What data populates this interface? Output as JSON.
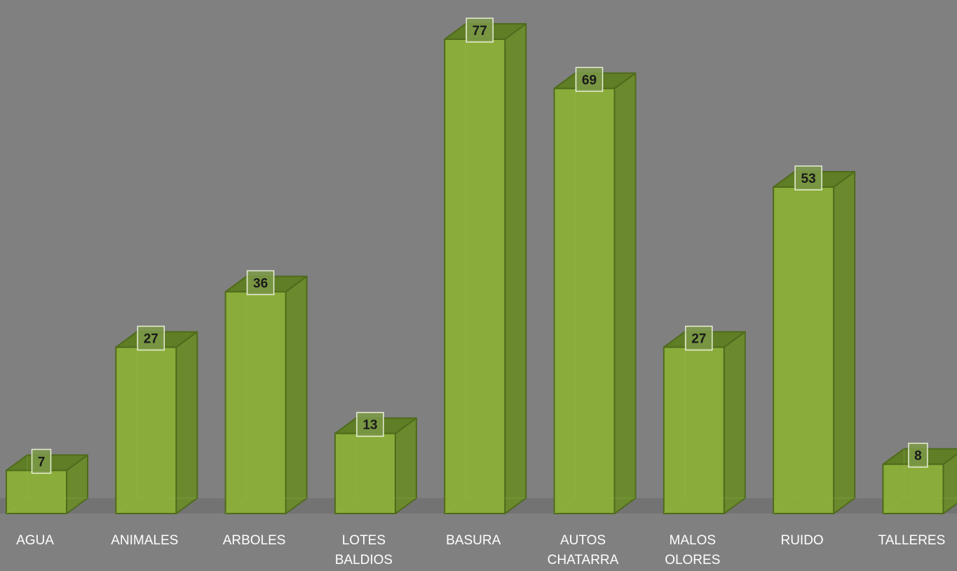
{
  "chart_data": {
    "type": "bar",
    "style": "3d-column",
    "categories": [
      [
        "AGUA"
      ],
      [
        "ANIMALES"
      ],
      [
        "ARBOLES"
      ],
      [
        "LOTES",
        "BALDIOS"
      ],
      [
        "BASURA"
      ],
      [
        "AUTOS",
        "CHATARRA"
      ],
      [
        "MALOS",
        "OLORES"
      ],
      [
        "RUIDO"
      ],
      [
        "TALLERES"
      ]
    ],
    "values": [
      7,
      27,
      36,
      13,
      77,
      69,
      27,
      53,
      8
    ],
    "ylim": [
      0,
      77
    ],
    "grid": false,
    "legend": "none",
    "title": "",
    "xlabel": "",
    "ylabel": "",
    "colors": {
      "background": "#808080",
      "floor": "#737373",
      "bar_front": "#8aac3a",
      "bar_side": "#6b8a2e",
      "bar_top": "#5f7e25",
      "bar_edge": "#4f6a1c",
      "label_box_fill": "#7d9a48",
      "label_box_stroke": "#e8eed8",
      "value_text": "#1a1a1a",
      "category_text": "#ffffff"
    }
  }
}
